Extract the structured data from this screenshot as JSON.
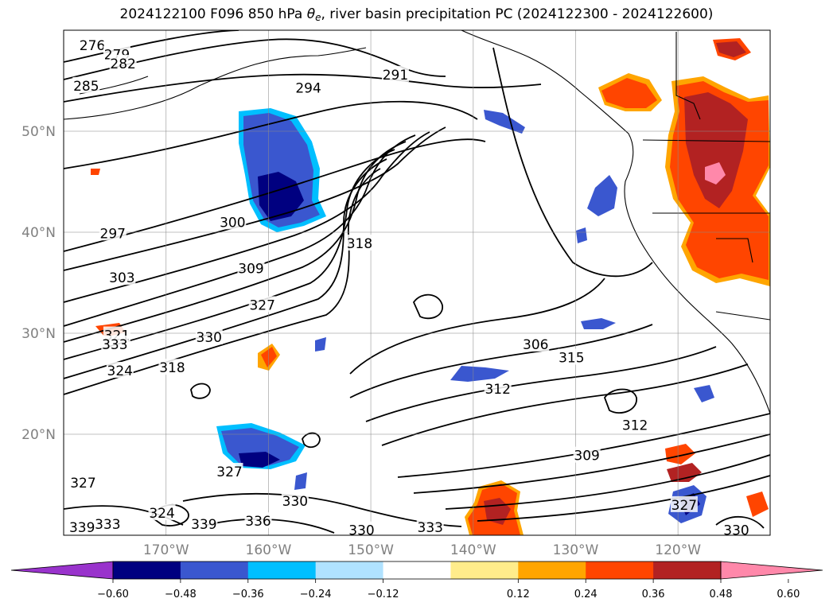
{
  "title": {
    "prefix": "2024122100 F096 850 hPa ",
    "theta": "θ",
    "theta_sub": "e",
    "suffix": ", river basin precipitation PC (2024122300 - 2024122600)"
  },
  "axes": {
    "lat_labels": [
      "20°N",
      "30°N",
      "40°N",
      "50°N"
    ],
    "lat_values": [
      20,
      30,
      40,
      50
    ],
    "lon_labels": [
      "170°W",
      "160°W",
      "150°W",
      "140°W",
      "130°W",
      "120°W"
    ],
    "lon_values": [
      -170,
      -160,
      -150,
      -140,
      -130,
      -120
    ],
    "lon_range": [
      -180,
      -111
    ],
    "lat_range": [
      10,
      60
    ],
    "grid": true
  },
  "contour_labels": [
    {
      "text": "276",
      "lon": -177.2,
      "lat": 58.5
    },
    {
      "text": "279",
      "lon": -174.8,
      "lat": 57.6
    },
    {
      "text": "282",
      "lon": -174.2,
      "lat": 56.7
    },
    {
      "text": "285",
      "lon": -177.8,
      "lat": 54.5
    },
    {
      "text": "291",
      "lon": -147.6,
      "lat": 55.6
    },
    {
      "text": "294",
      "lon": -156.1,
      "lat": 54.3
    },
    {
      "text": "297",
      "lon": -175.2,
      "lat": 39.9
    },
    {
      "text": "300",
      "lon": -163.5,
      "lat": 41.0
    },
    {
      "text": "303",
      "lon": -174.3,
      "lat": 35.5
    },
    {
      "text": "309",
      "lon": -161.7,
      "lat": 36.4
    },
    {
      "text": "318",
      "lon": -151.1,
      "lat": 38.9
    },
    {
      "text": "327",
      "lon": -160.6,
      "lat": 32.8
    },
    {
      "text": "321",
      "lon": -174.8,
      "lat": 29.8
    },
    {
      "text": "333",
      "lon": -175.0,
      "lat": 28.9
    },
    {
      "text": "330",
      "lon": -165.8,
      "lat": 29.6
    },
    {
      "text": "324",
      "lon": -174.5,
      "lat": 26.3
    },
    {
      "text": "318",
      "lon": -169.4,
      "lat": 26.6
    },
    {
      "text": "306",
      "lon": -133.9,
      "lat": 28.9
    },
    {
      "text": "315",
      "lon": -130.4,
      "lat": 27.6
    },
    {
      "text": "312",
      "lon": -137.6,
      "lat": 24.5
    },
    {
      "text": "312",
      "lon": -124.2,
      "lat": 20.9
    },
    {
      "text": "309",
      "lon": -128.9,
      "lat": 17.9
    },
    {
      "text": "327",
      "lon": -163.8,
      "lat": 16.3
    },
    {
      "text": "327",
      "lon": -178.1,
      "lat": 15.2
    },
    {
      "text": "330",
      "lon": -157.4,
      "lat": 13.4
    },
    {
      "text": "324",
      "lon": -170.4,
      "lat": 12.2
    },
    {
      "text": "327",
      "lon": -119.4,
      "lat": 13.0
    },
    {
      "text": "339",
      "lon": -178.2,
      "lat": 10.8
    },
    {
      "text": "333",
      "lon": -175.7,
      "lat": 11.1
    },
    {
      "text": "339",
      "lon": -166.3,
      "lat": 11.1
    },
    {
      "text": "336",
      "lon": -161.0,
      "lat": 11.4
    },
    {
      "text": "330",
      "lon": -150.9,
      "lat": 10.5
    },
    {
      "text": "333",
      "lon": -144.2,
      "lat": 10.8
    },
    {
      "text": "330",
      "lon": -114.3,
      "lat": 10.5
    }
  ],
  "colorbar": {
    "tick_labels": [
      "−0.60",
      "−0.48",
      "−0.36",
      "−0.24",
      "−0.12",
      "0.12",
      "0.24",
      "0.36",
      "0.48",
      "0.60"
    ],
    "levels": [
      -0.6,
      -0.48,
      -0.36,
      -0.24,
      -0.12,
      0.12,
      0.24,
      0.36,
      0.48,
      0.6
    ],
    "colors": [
      "#9933cc",
      "#000080",
      "#3a57cf",
      "#00bfff",
      "#b0e2ff",
      "#ffffff",
      "#ffec8b",
      "#ffa500",
      "#ff4500",
      "#b22222",
      "#ff88aa"
    ],
    "extend": "both"
  }
}
